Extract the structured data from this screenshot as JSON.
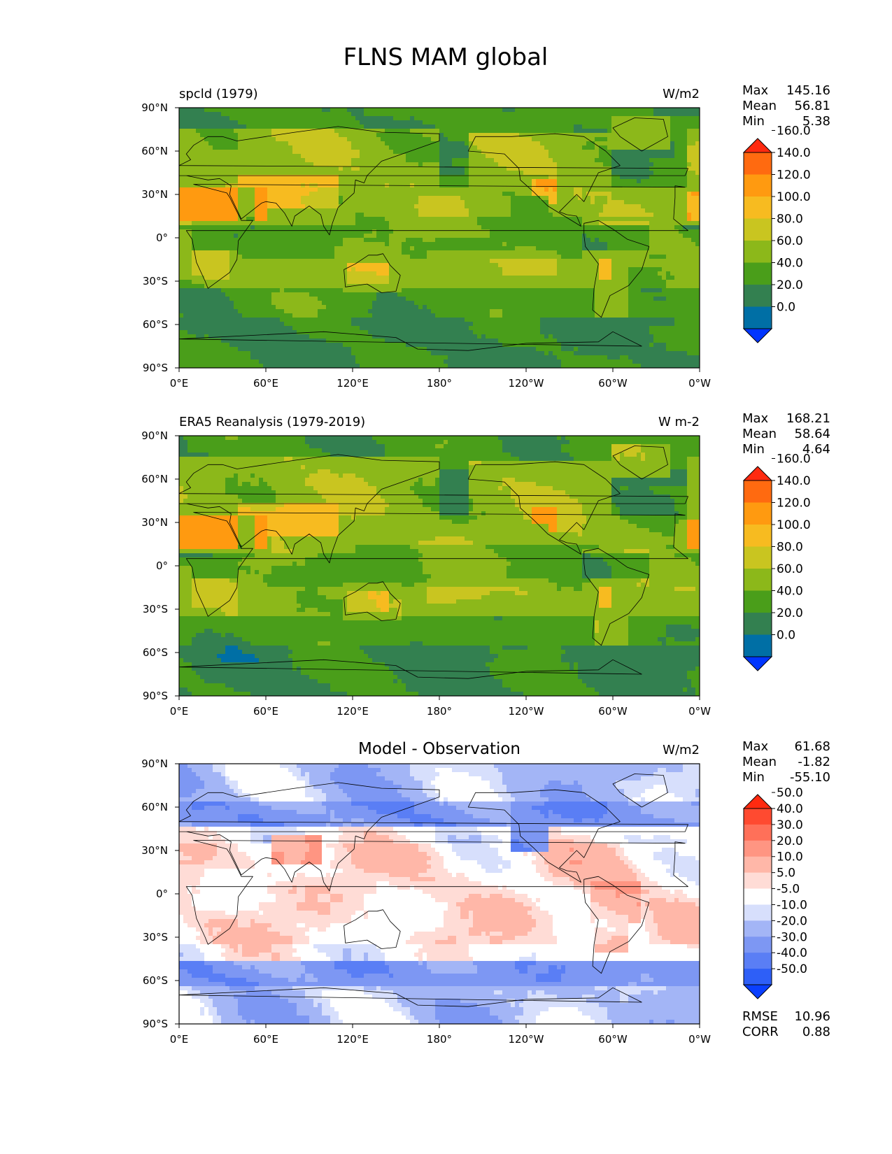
{
  "figure": {
    "title": "FLNS MAM global"
  },
  "axes": {
    "lon_ticks": [
      "0°E",
      "60°E",
      "120°E",
      "180°",
      "120°W",
      "60°W",
      "0°W"
    ],
    "lat_ticks": [
      "90°N",
      "60°N",
      "30°N",
      "0°",
      "30°S",
      "60°S",
      "90°S"
    ]
  },
  "colors": {
    "abs_levels": [
      "#0035ff",
      "#006fa5",
      "#338050",
      "#4a9e1a",
      "#8cb81a",
      "#c9c520",
      "#f7bb20",
      "#ff9a10",
      "#ff6a10",
      "#ff2a10"
    ],
    "diff_levels": [
      "#0a3fff",
      "#2e5ff7",
      "#5a7ef5",
      "#7d97f3",
      "#a3b5f6",
      "#d7dffc",
      "#ffffff",
      "#ffdcd6",
      "#ffb7a8",
      "#ff9582",
      "#ff7059",
      "#ff4a30",
      "#ff2a10"
    ]
  },
  "panels": [
    {
      "title": "spcld (1979)",
      "units": "W/m2",
      "stats": [
        {
          "label": "Max",
          "value": "145.16"
        },
        {
          "label": "Mean",
          "value": "56.81"
        },
        {
          "label": "Min",
          "value": "5.38"
        }
      ],
      "colorbar_labels": [
        "0.0",
        "20.0",
        "40.0",
        "60.0",
        "80.0",
        "100.0",
        "120.0",
        "140.0",
        "160.0"
      ]
    },
    {
      "title": "ERA5 Reanalysis (1979-2019)",
      "units": "W m-2",
      "stats": [
        {
          "label": "Max",
          "value": "168.21"
        },
        {
          "label": "Mean",
          "value": "58.64"
        },
        {
          "label": "Min",
          "value": "4.64"
        }
      ],
      "colorbar_labels": [
        "0.0",
        "20.0",
        "40.0",
        "60.0",
        "80.0",
        "100.0",
        "120.0",
        "140.0",
        "160.0"
      ]
    },
    {
      "title": "Model - Observation",
      "units": "W/m2",
      "stats": [
        {
          "label": "Max",
          "value": "61.68"
        },
        {
          "label": "Mean",
          "value": "-1.82"
        },
        {
          "label": "Min",
          "value": "-55.10"
        }
      ],
      "colorbar_labels": [
        "-50.0",
        "-40.0",
        "-30.0",
        "-20.0",
        "-10.0",
        "-5.0",
        "5.0",
        "10.0",
        "20.0",
        "30.0",
        "40.0",
        "50.0"
      ],
      "extra_stats": [
        {
          "label": "RMSE",
          "value": "10.96"
        },
        {
          "label": "CORR",
          "value": "0.88"
        }
      ]
    }
  ],
  "chart_data": [
    {
      "type": "heatmap",
      "title": "spcld (1979)",
      "units": "W/m2",
      "xlabel": "",
      "ylabel": "",
      "xlim": [
        0,
        360
      ],
      "ylim": [
        -90,
        90
      ],
      "levels": [
        0,
        20,
        40,
        60,
        80,
        100,
        120,
        140,
        160
      ],
      "max": 145.16,
      "mean": 56.81,
      "min": 5.38
    },
    {
      "type": "heatmap",
      "title": "ERA5 Reanalysis (1979-2019)",
      "units": "W m-2",
      "xlabel": "",
      "ylabel": "",
      "xlim": [
        0,
        360
      ],
      "ylim": [
        -90,
        90
      ],
      "levels": [
        0,
        20,
        40,
        60,
        80,
        100,
        120,
        140,
        160
      ],
      "max": 168.21,
      "mean": 58.64,
      "min": 4.64
    },
    {
      "type": "heatmap",
      "title": "Model - Observation",
      "units": "W/m2",
      "xlabel": "",
      "ylabel": "",
      "xlim": [
        0,
        360
      ],
      "ylim": [
        -90,
        90
      ],
      "levels": [
        -50,
        -40,
        -30,
        -20,
        -10,
        -5,
        5,
        10,
        20,
        30,
        40,
        50
      ],
      "max": 61.68,
      "mean": -1.82,
      "min": -55.1,
      "rmse": 10.96,
      "corr": 0.88
    }
  ]
}
